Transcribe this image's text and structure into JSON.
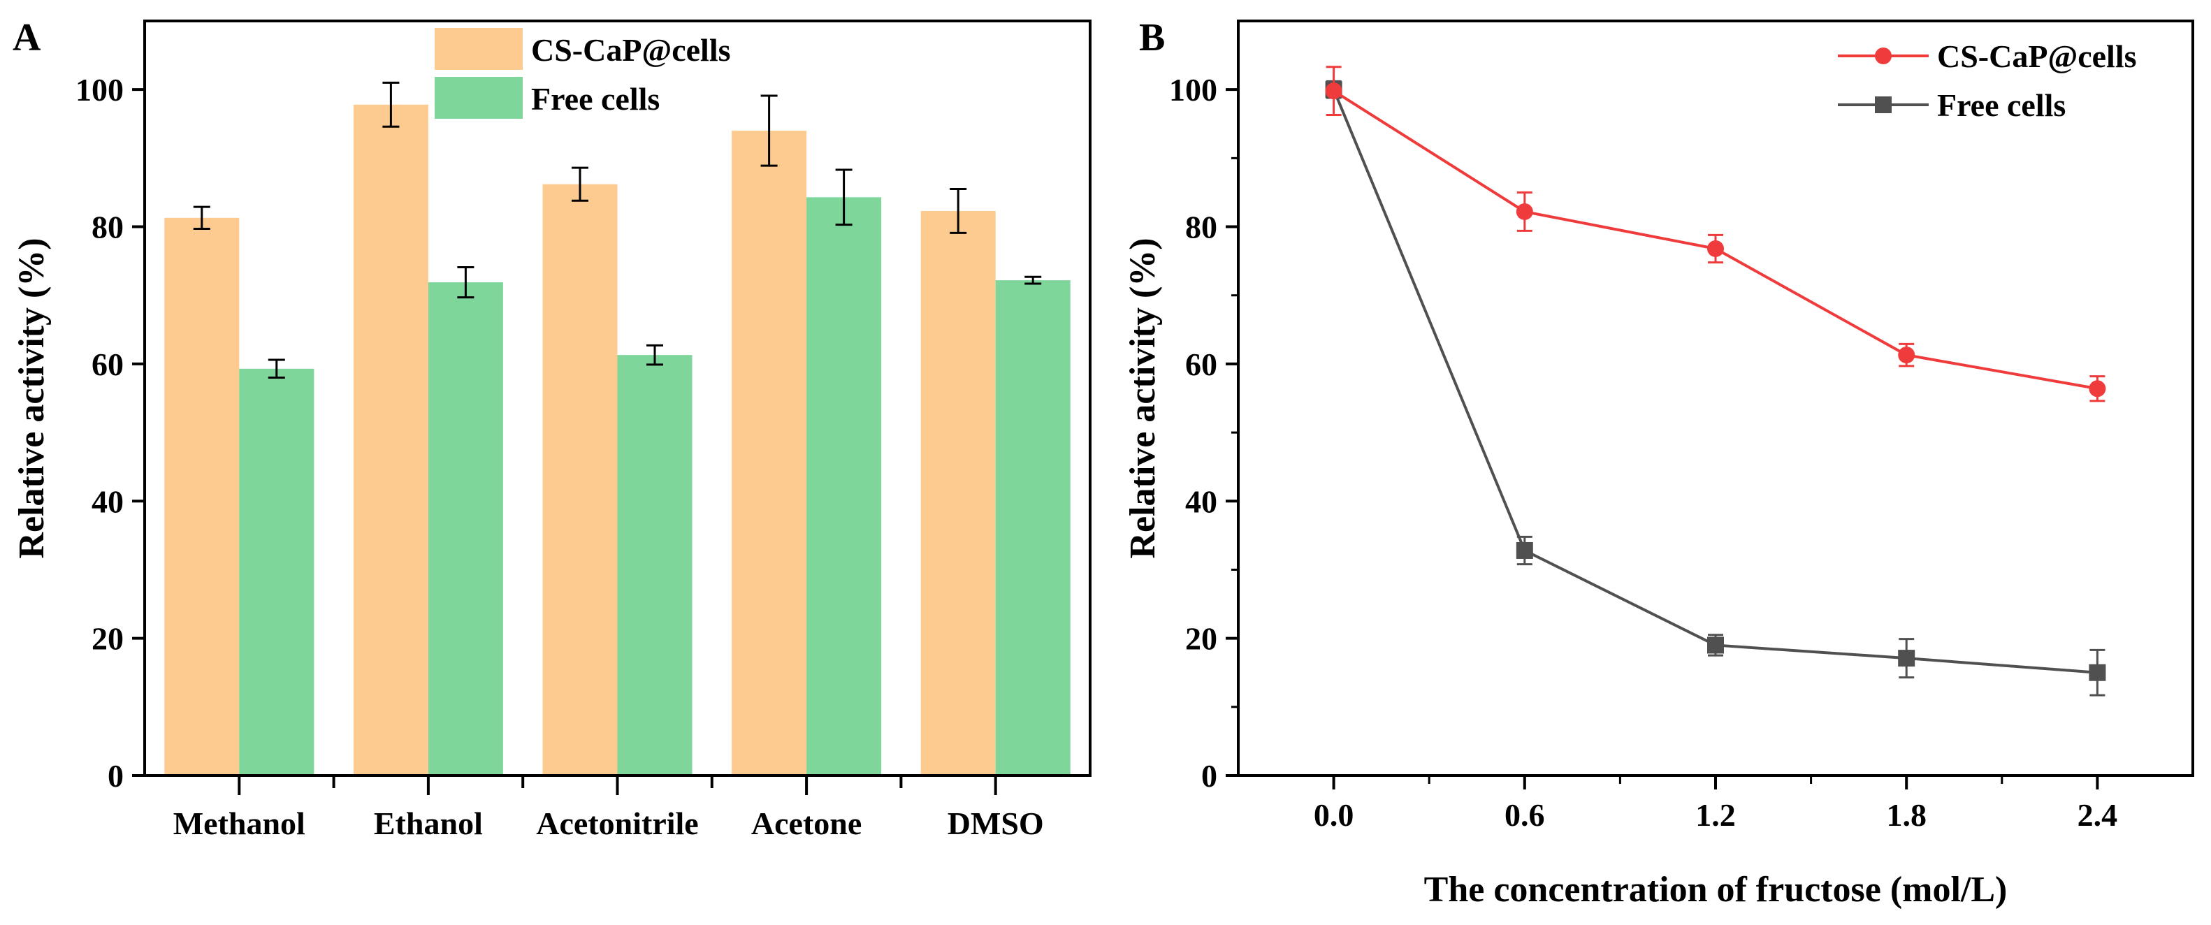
{
  "chart_data": [
    {
      "panel": "A",
      "type": "bar",
      "ylabel": "Relative activity (%)",
      "xlabel": "",
      "ylim": [
        0,
        110
      ],
      "yticks": [
        0,
        20,
        40,
        60,
        80,
        100
      ],
      "categories": [
        "Methanol",
        "Ethanol",
        "Acetonitrile",
        "Acetone",
        "DMSO"
      ],
      "legend_position": "top-center",
      "series": [
        {
          "name": "CS-CaP@cells",
          "color": "#FDCB8F",
          "values": [
            81.3,
            97.8,
            86.2,
            94.0,
            82.3
          ],
          "errors": [
            1.6,
            3.2,
            2.4,
            5.1,
            3.2
          ]
        },
        {
          "name": "Free cells",
          "color": "#7ED69B",
          "values": [
            59.3,
            71.9,
            61.3,
            84.3,
            72.2
          ],
          "errors": [
            1.3,
            2.2,
            1.4,
            4.0,
            0.5
          ]
        }
      ]
    },
    {
      "panel": "B",
      "type": "line",
      "xlabel": "The concentration of fructose (mol/L)",
      "ylabel": "Relative activity (%)",
      "xlim": [
        -0.3,
        2.7
      ],
      "ylim": [
        0,
        110
      ],
      "xticks": [
        "0.0",
        "0.6",
        "1.2",
        "1.8",
        "2.4"
      ],
      "yticks": [
        0,
        20,
        40,
        60,
        80,
        100
      ],
      "x": [
        0.0,
        0.6,
        1.2,
        1.8,
        2.4
      ],
      "legend_position": "top-right",
      "series": [
        {
          "name": "CS-CaP@cells",
          "color": "#EF3B3B",
          "marker": "circle",
          "values": [
            99.8,
            82.2,
            76.8,
            61.3,
            56.4
          ],
          "errors": [
            3.5,
            2.8,
            2.0,
            1.6,
            1.8
          ]
        },
        {
          "name": "Free cells",
          "color": "#505050",
          "marker": "square",
          "values": [
            100.0,
            32.8,
            19.0,
            17.1,
            15.0
          ],
          "errors": [
            1.2,
            2.0,
            1.5,
            2.8,
            3.3
          ]
        }
      ]
    }
  ]
}
